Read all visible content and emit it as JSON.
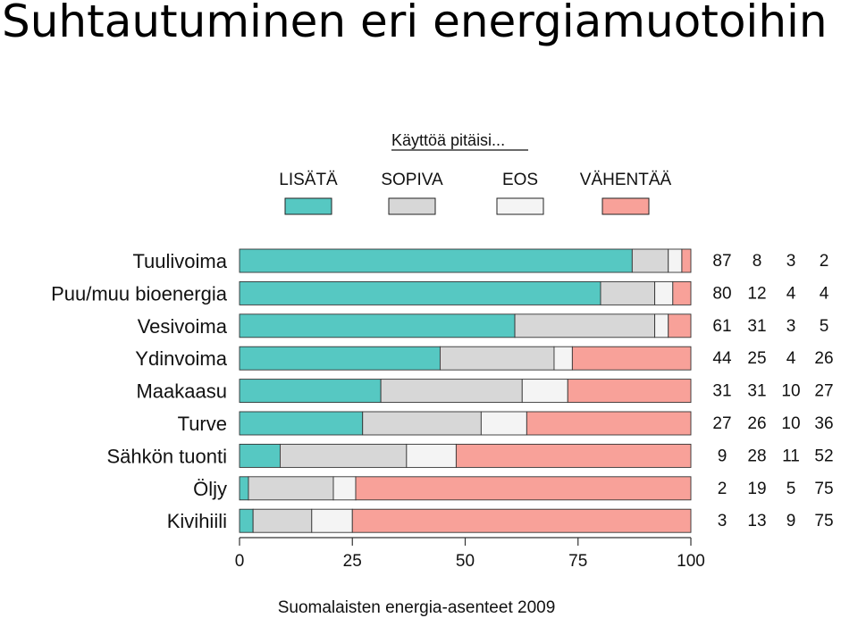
{
  "slide": {
    "title": "Suhtautuminen eri energiamuotoihin"
  },
  "chart_data": {
    "type": "bar",
    "orientation": "horizontal",
    "stacked": true,
    "legend_title": "Käyttöä pitäisi...",
    "legend_placement": "top",
    "caption": "Suomalaisten energia-asenteet 2009",
    "categories": [
      "Tuulivoima",
      "Puu/muu bioenergia",
      "Vesivoima",
      "Ydinvoima",
      "Maakaasu",
      "Turve",
      "Sähkön tuonti",
      "Öljy",
      "Kivihiili"
    ],
    "series": [
      {
        "name": "LISÄTÄ",
        "color": "#56C8C2",
        "values": [
          87,
          80,
          61,
          44,
          31,
          27,
          9,
          2,
          3
        ]
      },
      {
        "name": "SOPIVA",
        "color": "#D7D7D7",
        "values": [
          8,
          12,
          31,
          25,
          31,
          26,
          28,
          19,
          13
        ]
      },
      {
        "name": "EOS",
        "color": "#F4F4F4",
        "values": [
          3,
          4,
          3,
          4,
          10,
          10,
          11,
          5,
          9
        ]
      },
      {
        "name": "VÄHENTÄÄ",
        "color": "#F8A199",
        "values": [
          2,
          4,
          5,
          26,
          27,
          36,
          52,
          75,
          75
        ]
      }
    ],
    "xlim": [
      0,
      100
    ],
    "xticks": [
      0,
      25,
      50,
      75,
      100
    ],
    "grid": false
  }
}
